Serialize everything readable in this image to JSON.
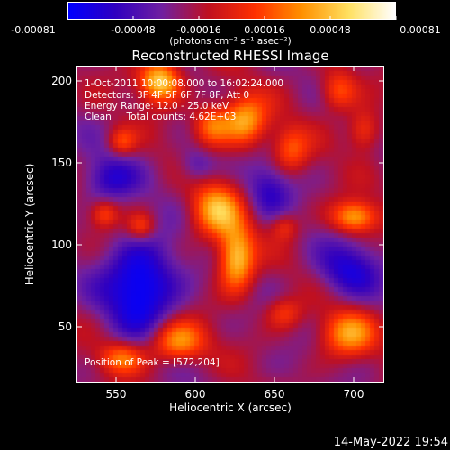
{
  "colorbar": {
    "ticks": [
      "-0.00081",
      "-0.00048",
      "-0.00016",
      "0.00016",
      "0.00048",
      "0.00081"
    ],
    "units": "(photons cm⁻² s⁻¹ asec⁻²)",
    "colors": [
      "#0000ff",
      "#3000c0",
      "#7020a0",
      "#c01020",
      "#ff3000",
      "#ff9000",
      "#ffe060",
      "#ffffff"
    ]
  },
  "title": "Reconstructed RHESSI Image",
  "info": {
    "time": "1-Oct-2011 10:00:08.000 to 16:02:24.000",
    "detectors": "Detectors: 3F 4F 5F 6F 7F 8F, Att 0",
    "energy": "Energy Range: 12.0 - 25.0 keV",
    "clean": "Clean     Total counts: 4.62E+03",
    "peak": "Position of Peak = [572,204]"
  },
  "axes": {
    "xlabel": "Heliocentric X (arcsec)",
    "ylabel": "Heliocentric Y (arcsec)",
    "xticks": [
      "550",
      "600",
      "650",
      "700"
    ],
    "yticks": [
      "200",
      "150",
      "100",
      "50"
    ]
  },
  "chart_data": {
    "type": "heatmap",
    "title": "Reconstructed RHESSI Image",
    "xlabel": "Heliocentric X (arcsec)",
    "ylabel": "Heliocentric Y (arcsec)",
    "xlim": [
      520,
      712
    ],
    "ylim": [
      15,
      212
    ],
    "zlim": [
      -0.00081,
      0.00081
    ],
    "peak": [
      572,
      204
    ],
    "blobs": [
      {
        "x": 572,
        "y": 203,
        "amp": 1.0,
        "sx": 9,
        "sy": 9
      },
      {
        "x": 625,
        "y": 178,
        "amp": 0.8,
        "sx": 10,
        "sy": 11
      },
      {
        "x": 604,
        "y": 175,
        "amp": 0.6,
        "sx": 8,
        "sy": 9
      },
      {
        "x": 548,
        "y": 165,
        "amp": 0.45,
        "sx": 6,
        "sy": 6
      },
      {
        "x": 654,
        "y": 160,
        "amp": 0.5,
        "sx": 8,
        "sy": 10
      },
      {
        "x": 684,
        "y": 197,
        "amp": 0.55,
        "sx": 8,
        "sy": 9
      },
      {
        "x": 700,
        "y": 172,
        "amp": 0.5,
        "sx": 7,
        "sy": 9
      },
      {
        "x": 607,
        "y": 122,
        "amp": 0.8,
        "sx": 11,
        "sy": 12
      },
      {
        "x": 620,
        "y": 92,
        "amp": 0.95,
        "sx": 8,
        "sy": 14
      },
      {
        "x": 537,
        "y": 120,
        "amp": 0.45,
        "sx": 6,
        "sy": 6
      },
      {
        "x": 560,
        "y": 112,
        "amp": 0.45,
        "sx": 6,
        "sy": 6
      },
      {
        "x": 694,
        "y": 118,
        "amp": 0.8,
        "sx": 10,
        "sy": 7
      },
      {
        "x": 650,
        "y": 112,
        "amp": 0.35,
        "sx": 6,
        "sy": 6
      },
      {
        "x": 583,
        "y": 40,
        "amp": 0.75,
        "sx": 12,
        "sy": 9
      },
      {
        "x": 548,
        "y": 30,
        "amp": 0.6,
        "sx": 10,
        "sy": 7
      },
      {
        "x": 690,
        "y": 45,
        "amp": 0.7,
        "sx": 12,
        "sy": 10
      },
      {
        "x": 650,
        "y": 58,
        "amp": 0.4,
        "sx": 8,
        "sy": 7
      },
      {
        "x": 560,
        "y": 75,
        "amp": -0.8,
        "sx": 16,
        "sy": 20
      },
      {
        "x": 540,
        "y": 142,
        "amp": -0.45,
        "sx": 12,
        "sy": 10
      },
      {
        "x": 690,
        "y": 85,
        "amp": -0.5,
        "sx": 14,
        "sy": 12
      },
      {
        "x": 640,
        "y": 135,
        "amp": -0.4,
        "sx": 10,
        "sy": 12
      },
      {
        "x": 595,
        "y": 150,
        "amp": -0.35,
        "sx": 8,
        "sy": 8
      }
    ]
  },
  "date_stamp": "14-May-2022 19:54"
}
